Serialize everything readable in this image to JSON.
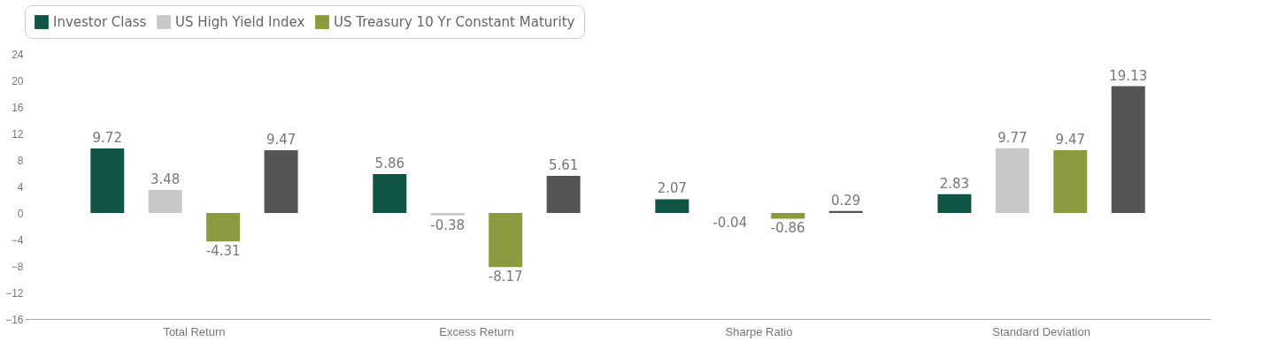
{
  "chart_data": {
    "type": "bar",
    "categories": [
      "Total Return",
      "Excess Return",
      "Sharpe Ratio",
      "Standard Deviation"
    ],
    "series": [
      {
        "name": "Investor Class",
        "color": "#0f5444",
        "values": [
          9.72,
          5.86,
          2.07,
          2.83
        ]
      },
      {
        "name": "US High Yield Index",
        "color": "#c8c8c8",
        "values": [
          3.48,
          -0.38,
          -0.04,
          9.77
        ]
      },
      {
        "name": "US Treasury 10 Yr Constant Maturity",
        "color": "#8c9a3f",
        "values": [
          -4.31,
          -8.17,
          -0.86,
          9.47
        ]
      },
      {
        "color": "#555555",
        "values": [
          9.47,
          5.61,
          0.29,
          19.13
        ]
      }
    ],
    "ylim": [
      -16,
      24
    ],
    "yticks": [
      -16,
      -12,
      -8,
      -4,
      0,
      4,
      8,
      12,
      16,
      20,
      24
    ],
    "data_labels": true,
    "legend": "top",
    "grid": false
  }
}
